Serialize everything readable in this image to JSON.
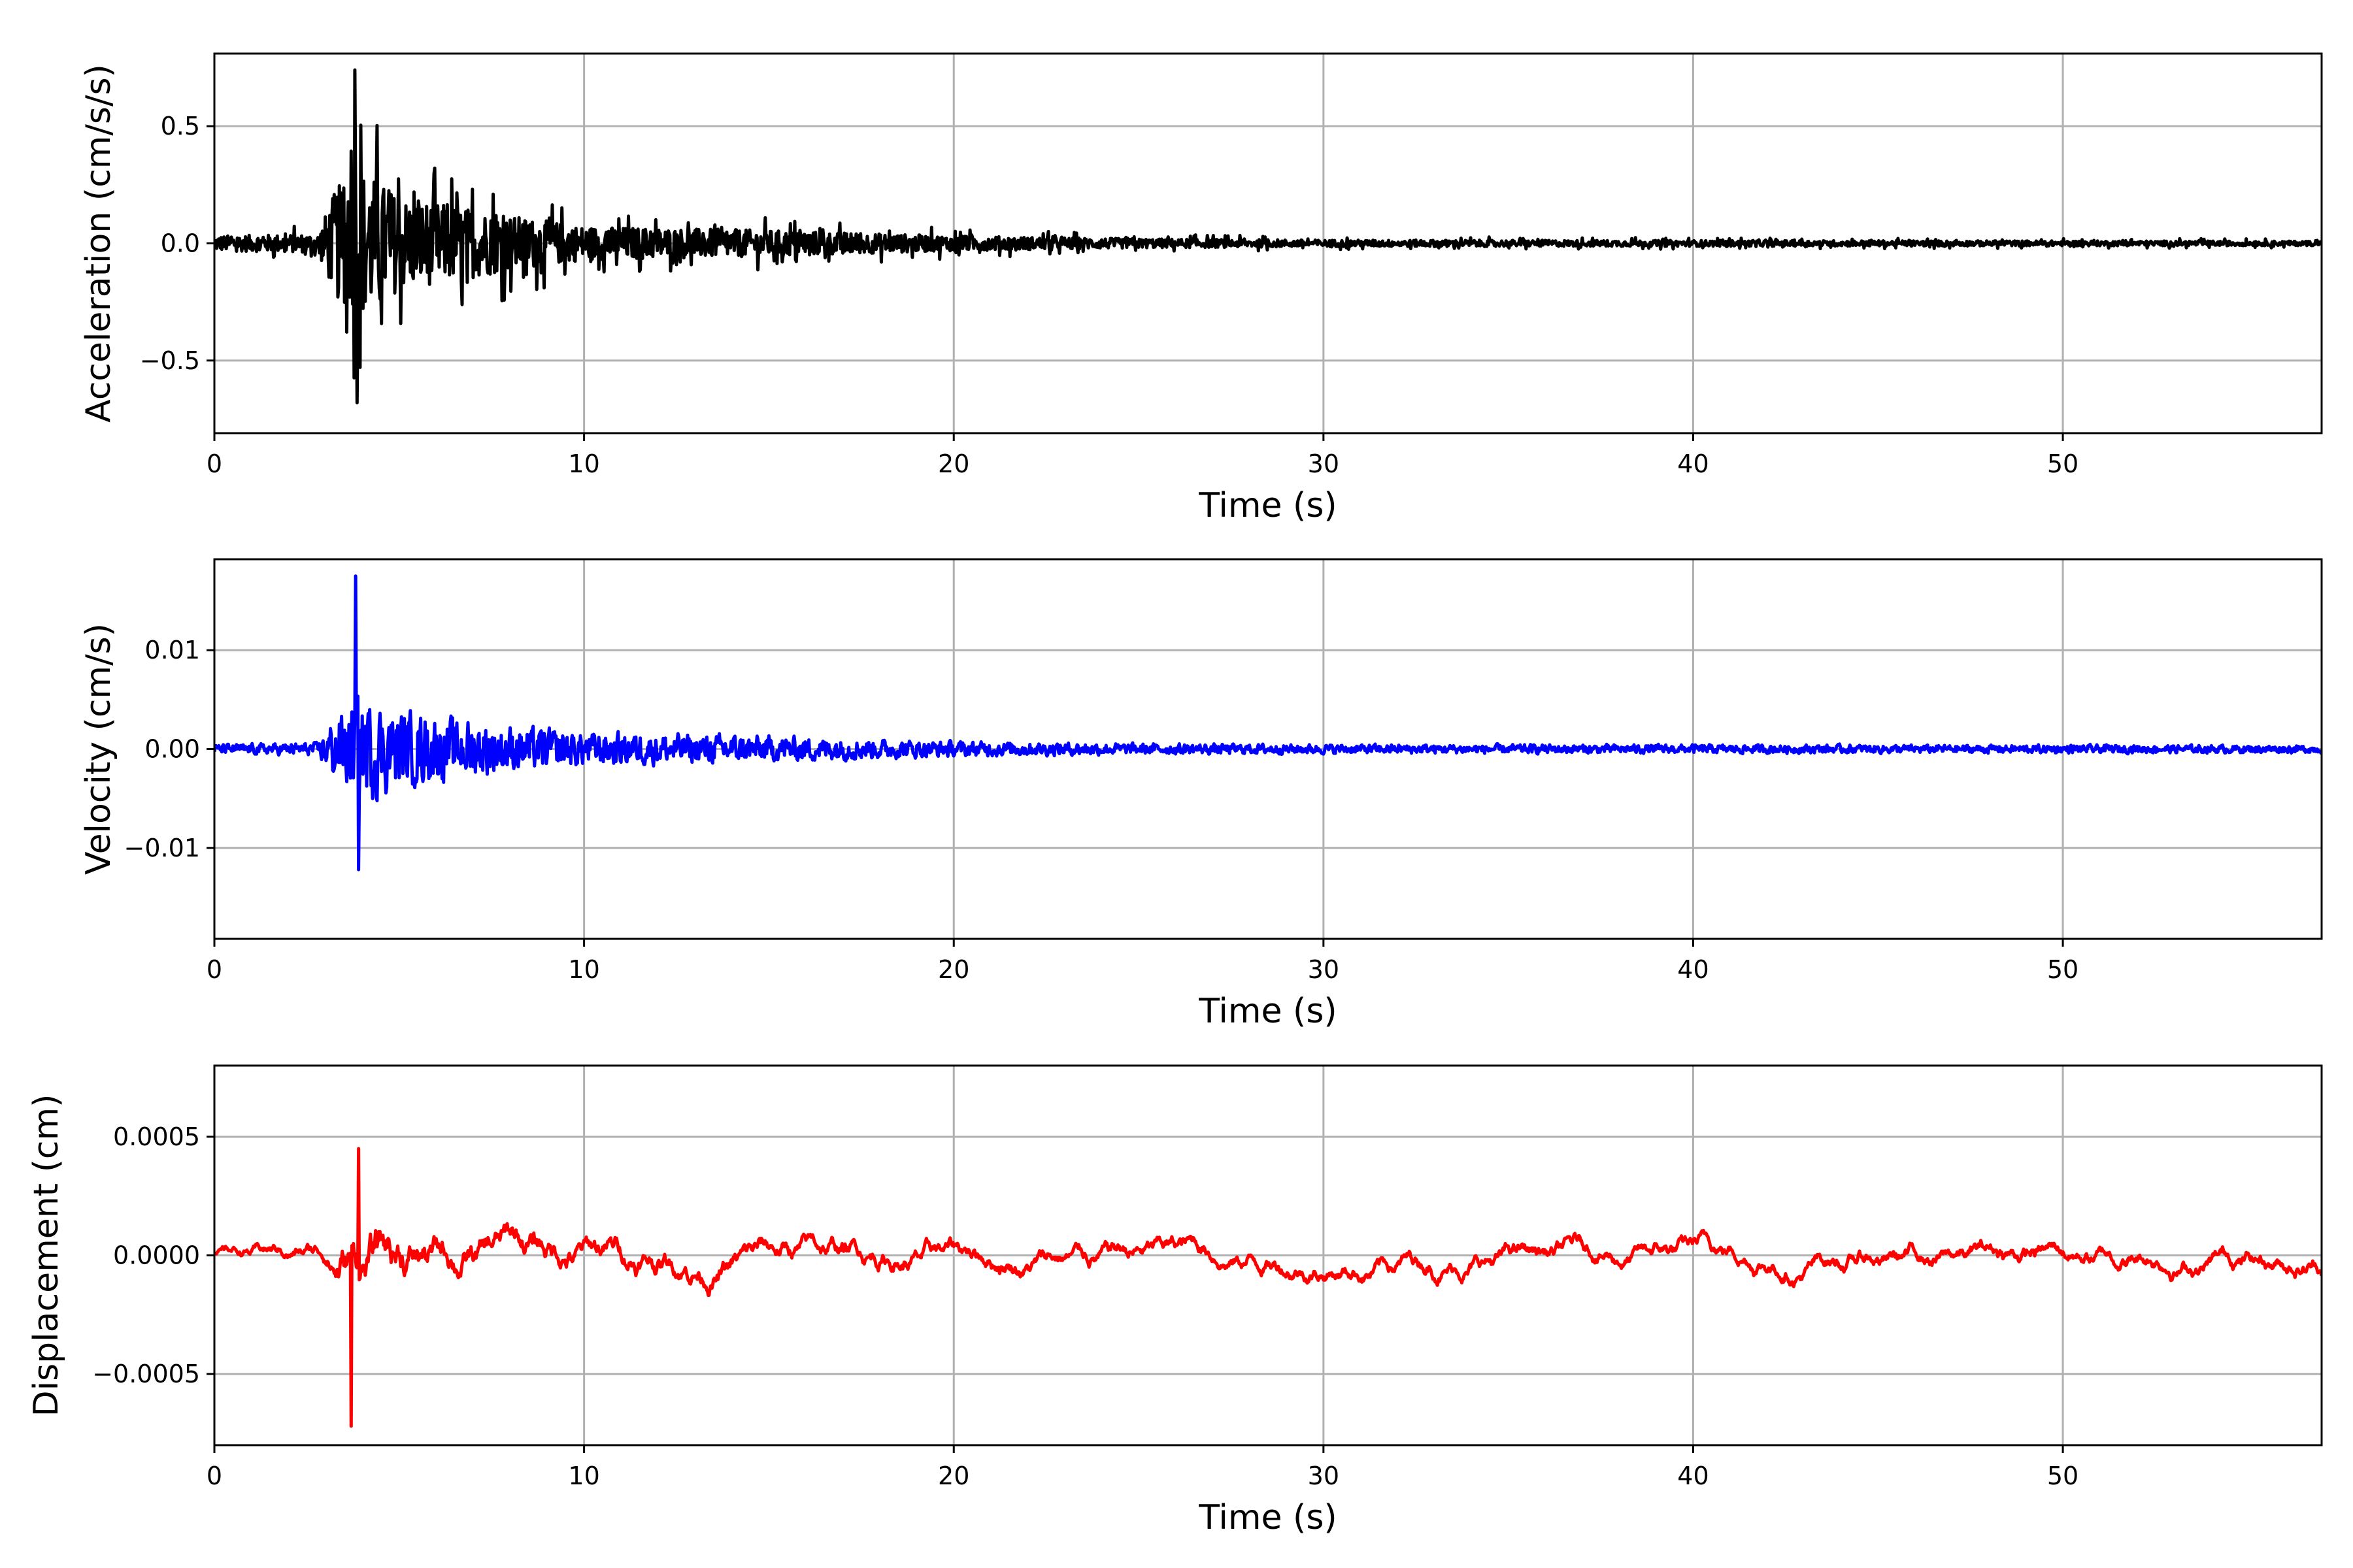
{
  "chart_data": [
    {
      "type": "line",
      "title": "",
      "xlabel": "Time (s)",
      "ylabel": "Acceleration (cm/s/s)",
      "xlim": [
        0,
        57
      ],
      "ylim": [
        -0.81,
        0.81
      ],
      "xticks": [
        0,
        10,
        20,
        30,
        40,
        50
      ],
      "xtick_labels": [
        "0",
        "10",
        "20",
        "30",
        "40",
        "50"
      ],
      "yticks": [
        -0.5,
        0.0,
        0.5
      ],
      "ytick_labels": [
        "−0.5",
        "0.0",
        "0.5"
      ],
      "grid": true,
      "color": "#000000",
      "series": {
        "name": "acceleration",
        "kind": "high-frequency",
        "peak_max": {
          "t": 3.8,
          "v": 0.74
        },
        "peak_min": {
          "t": 3.85,
          "v": -0.68
        },
        "envelope": [
          [
            0,
            0.04
          ],
          [
            2.8,
            0.05
          ],
          [
            3.3,
            0.3
          ],
          [
            4.0,
            0.4
          ],
          [
            5.0,
            0.25
          ],
          [
            8.0,
            0.15
          ],
          [
            10,
            0.09
          ],
          [
            15,
            0.07
          ],
          [
            20,
            0.04
          ],
          [
            25,
            0.025
          ],
          [
            30,
            0.018
          ],
          [
            57,
            0.012
          ]
        ]
      }
    },
    {
      "type": "line",
      "title": "",
      "xlabel": "Time (s)",
      "ylabel": "Velocity (cm/s)",
      "xlim": [
        0,
        57
      ],
      "ylim": [
        -0.0192,
        0.0192
      ],
      "xticks": [
        0,
        10,
        20,
        30,
        40,
        50
      ],
      "xtick_labels": [
        "0",
        "10",
        "20",
        "30",
        "40",
        "50"
      ],
      "yticks": [
        -0.01,
        0.0,
        0.01
      ],
      "ytick_labels": [
        "−0.01",
        "0.00",
        "0.01"
      ],
      "grid": true,
      "color": "#0000ff",
      "series": {
        "name": "velocity",
        "kind": "mid-frequency",
        "peak_max": {
          "t": 3.82,
          "v": 0.0175
        },
        "peak_min": {
          "t": 3.9,
          "v": -0.0122
        },
        "envelope": [
          [
            0,
            0.0006
          ],
          [
            2.8,
            0.0008
          ],
          [
            3.2,
            0.004
          ],
          [
            4.0,
            0.007
          ],
          [
            5.0,
            0.005
          ],
          [
            8.0,
            0.003
          ],
          [
            10,
            0.0022
          ],
          [
            15,
            0.0017
          ],
          [
            20,
            0.001
          ],
          [
            25,
            0.0007
          ],
          [
            30,
            0.0006
          ],
          [
            57,
            0.0005
          ]
        ]
      }
    },
    {
      "type": "line",
      "title": "",
      "xlabel": "Time (s)",
      "ylabel": "Displacement (cm)",
      "xlim": [
        0,
        57
      ],
      "ylim": [
        -0.0008,
        0.0008
      ],
      "xticks": [
        0,
        10,
        20,
        30,
        40,
        50
      ],
      "xtick_labels": [
        "0",
        "10",
        "20",
        "30",
        "40",
        "50"
      ],
      "yticks": [
        -0.0005,
        0.0,
        0.0005
      ],
      "ytick_labels": [
        "−0.0005",
        "0.0000",
        "0.0005"
      ],
      "grid": true,
      "color": "#ff0000",
      "series": {
        "name": "displacement",
        "kind": "low-frequency",
        "peak_max": {
          "t": 3.9,
          "v": 0.00045
        },
        "peak_min": {
          "t": 3.7,
          "v": -0.00072
        },
        "envelope": [
          [
            0,
            4e-05
          ],
          [
            3.0,
            8e-05
          ],
          [
            3.3,
            0.00022
          ],
          [
            4.5,
            0.00025
          ],
          [
            6,
            0.00015
          ],
          [
            8,
            0.00015
          ],
          [
            10,
            0.00012
          ],
          [
            20,
            9e-05
          ],
          [
            57,
            8e-05
          ]
        ]
      }
    }
  ]
}
